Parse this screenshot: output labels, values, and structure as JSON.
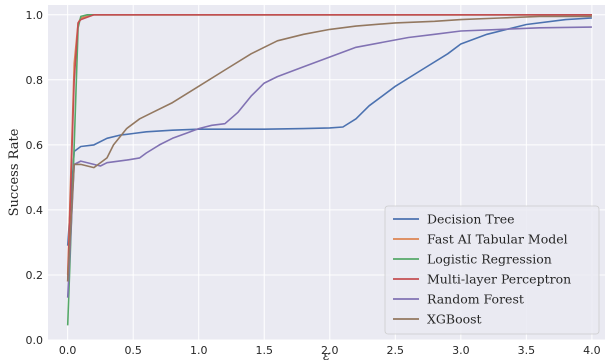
{
  "chart_data": {
    "type": "line",
    "xlabel": "ε",
    "ylabel": "Success Rate",
    "xlim": [
      -0.15,
      4.1
    ],
    "ylim": [
      0.0,
      1.03
    ],
    "xticks": [
      0.0,
      0.5,
      1.0,
      1.5,
      2.0,
      2.5,
      3.0,
      3.5,
      4.0
    ],
    "xtick_labels": [
      "0.0",
      "0.5",
      "1.0",
      "1.5",
      "2.0",
      "2.5",
      "3.0",
      "3.5",
      "4.0"
    ],
    "yticks": [
      0.0,
      0.2,
      0.4,
      0.6,
      0.8,
      1.0
    ],
    "ytick_labels": [
      "0.0",
      "0.2",
      "0.4",
      "0.6",
      "0.8",
      "1.0"
    ],
    "grid": true,
    "legend_position": "bottom-right",
    "background_color": "#EAEAF2",
    "series": [
      {
        "name": "Decision Tree",
        "color": "#4C72B0",
        "x": [
          0.0,
          0.05,
          0.1,
          0.2,
          0.3,
          0.4,
          0.5,
          0.6,
          0.8,
          1.0,
          1.2,
          1.5,
          1.8,
          2.0,
          2.1,
          2.2,
          2.3,
          2.5,
          2.7,
          2.9,
          3.0,
          3.2,
          3.5,
          3.8,
          4.0
        ],
        "y": [
          0.29,
          0.58,
          0.595,
          0.6,
          0.62,
          0.63,
          0.635,
          0.64,
          0.645,
          0.648,
          0.648,
          0.648,
          0.65,
          0.652,
          0.655,
          0.68,
          0.72,
          0.78,
          0.83,
          0.88,
          0.91,
          0.94,
          0.97,
          0.985,
          0.99
        ]
      },
      {
        "name": "Fast AI Tabular Model",
        "color": "#DD8452",
        "x": [
          0.0,
          0.05,
          0.08,
          0.1,
          0.2,
          4.0
        ],
        "y": [
          0.2,
          0.85,
          0.975,
          0.99,
          1.0,
          1.0
        ]
      },
      {
        "name": "Logistic Regression",
        "color": "#55A868",
        "x": [
          0.0,
          0.05,
          0.08,
          0.1,
          0.15,
          4.0
        ],
        "y": [
          0.045,
          0.6,
          0.96,
          0.995,
          1.0,
          1.0
        ]
      },
      {
        "name": "Multi-layer Perceptron",
        "color": "#C44E52",
        "x": [
          0.0,
          0.05,
          0.08,
          0.1,
          0.2,
          4.0
        ],
        "y": [
          0.18,
          0.8,
          0.975,
          0.985,
          1.0,
          1.0
        ]
      },
      {
        "name": "Random Forest",
        "color": "#8172B3",
        "x": [
          0.0,
          0.05,
          0.1,
          0.2,
          0.25,
          0.3,
          0.45,
          0.55,
          0.6,
          0.7,
          0.8,
          0.9,
          1.0,
          1.1,
          1.2,
          1.3,
          1.4,
          1.5,
          1.6,
          1.8,
          2.0,
          2.2,
          2.4,
          2.6,
          2.8,
          3.0,
          3.3,
          3.6,
          4.0
        ],
        "y": [
          0.13,
          0.54,
          0.55,
          0.54,
          0.535,
          0.545,
          0.553,
          0.56,
          0.575,
          0.6,
          0.62,
          0.635,
          0.65,
          0.66,
          0.665,
          0.7,
          0.75,
          0.79,
          0.81,
          0.84,
          0.87,
          0.9,
          0.915,
          0.93,
          0.94,
          0.95,
          0.955,
          0.96,
          0.962
        ]
      },
      {
        "name": "XGBoost",
        "color": "#937860",
        "x": [
          0.0,
          0.05,
          0.1,
          0.2,
          0.3,
          0.35,
          0.45,
          0.55,
          0.65,
          0.8,
          1.0,
          1.2,
          1.4,
          1.5,
          1.6,
          1.8,
          2.0,
          2.2,
          2.5,
          2.8,
          3.0,
          3.3,
          3.6,
          4.0
        ],
        "y": [
          0.18,
          0.54,
          0.54,
          0.53,
          0.56,
          0.6,
          0.65,
          0.68,
          0.7,
          0.73,
          0.78,
          0.83,
          0.88,
          0.9,
          0.92,
          0.94,
          0.955,
          0.965,
          0.975,
          0.98,
          0.985,
          0.99,
          0.995,
          0.995
        ]
      }
    ]
  }
}
